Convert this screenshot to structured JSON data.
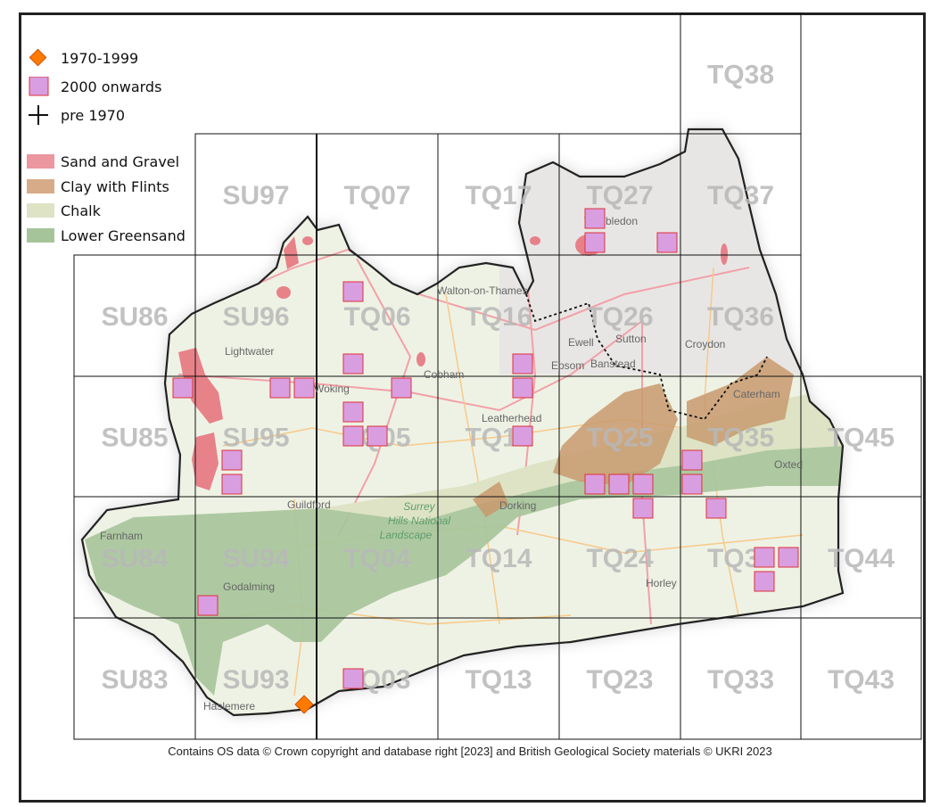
{
  "legend": {
    "points": [
      {
        "label": "1970-1999",
        "symbol": "diamond",
        "color": "#ff7a00"
      },
      {
        "label": "2000 onwards",
        "symbol": "square",
        "color": "#d99ee0",
        "stroke": "#e0303a"
      },
      {
        "label": "pre 1970",
        "symbol": "cross",
        "color": "#111111"
      }
    ],
    "geology": [
      {
        "label": "Sand and Gravel",
        "color": "#ec96a0"
      },
      {
        "label": "Clay with Flints",
        "color": "#d8ab88"
      },
      {
        "label": "Chalk",
        "color": "#dde3c4"
      },
      {
        "label": "Lower Greensand",
        "color": "#a6c49a"
      }
    ]
  },
  "grid_squares": [
    "TQ38",
    "SU97",
    "TQ07",
    "TQ17",
    "TQ27",
    "TQ37",
    "SU86",
    "SU96",
    "TQ06",
    "TQ16",
    "TQ26",
    "TQ36",
    "SU85",
    "SU95",
    "TQ05",
    "TQ15",
    "TQ25",
    "TQ35",
    "TQ45",
    "SU84",
    "SU94",
    "TQ04",
    "TQ14",
    "TQ24",
    "TQ34",
    "TQ44",
    "SU83",
    "SU93",
    "TQ03",
    "TQ13",
    "TQ23",
    "TQ33",
    "TQ43"
  ],
  "places": [
    "Lightwater",
    "Woking",
    "Cobham",
    "Leatherhead",
    "Epsom",
    "Ewell",
    "Sutton",
    "Croydon",
    "Wimbledon",
    "Guildford",
    "Dorking",
    "Farnham",
    "Godalming",
    "Haslemere",
    "Horley",
    "Oxted",
    "Banstead",
    "Caterham",
    "Walton-on-Thames"
  ],
  "park": [
    "Surrey",
    "Hills National",
    "Landscape"
  ],
  "credit": "Contains OS data  © Crown copyright and database right [2023] and British Geological Society materials © UKRI 2023"
}
